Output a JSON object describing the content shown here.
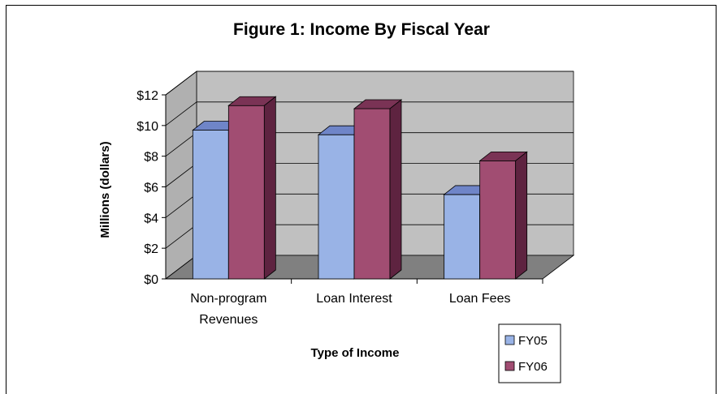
{
  "chart_data": {
    "type": "bar",
    "style": "3d-clustered-column",
    "title": "Figure 1: Income By Fiscal Year",
    "xlabel": "Type of Income",
    "ylabel": "Millions (dollars)",
    "categories": [
      "Non-program\nRevenues",
      "Loan Interest",
      "Loan Fees"
    ],
    "series": [
      {
        "name": "FY05",
        "values": [
          9.7,
          9.4,
          5.5
        ],
        "color": "#99b3e6",
        "side_color": "#5a6fa8",
        "top_color": "#6f85c8"
      },
      {
        "name": "FY06",
        "values": [
          11.3,
          11.1,
          7.7
        ],
        "color": "#a14d72",
        "side_color": "#5e2340",
        "top_color": "#7a3355"
      }
    ],
    "ylim": [
      0,
      12
    ],
    "yticks": [
      "$0",
      "$2",
      "$4",
      "$6",
      "$8",
      "$10",
      "$12"
    ],
    "grid": true,
    "wall_color": "#c0c0c0",
    "floor_color": "#808080",
    "legend_position": "bottom-right"
  }
}
